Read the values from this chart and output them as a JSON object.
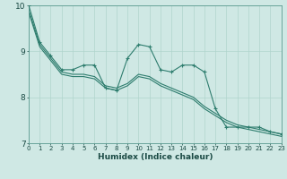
{
  "title": "",
  "xlabel": "Humidex (Indice chaleur)",
  "background_color": "#cfe8e4",
  "line_color": "#2e7d6e",
  "grid_color": "#b0d4cc",
  "x_min": 0,
  "x_max": 23,
  "y_min": 7,
  "y_max": 10,
  "series1_x": [
    0,
    1,
    2,
    3,
    4,
    5,
    6,
    7,
    8,
    9,
    10,
    11,
    12,
    13,
    14,
    15,
    16,
    17,
    18,
    19,
    20,
    21,
    22,
    23
  ],
  "series1_y": [
    10.0,
    9.2,
    8.9,
    8.6,
    8.6,
    8.7,
    8.7,
    8.2,
    8.15,
    8.85,
    9.15,
    9.1,
    8.6,
    8.55,
    8.7,
    8.7,
    8.55,
    7.75,
    7.35,
    7.35,
    7.35,
    7.35,
    7.25,
    7.2
  ],
  "series2_x": [
    0,
    1,
    2,
    3,
    4,
    5,
    6,
    7,
    8,
    9,
    10,
    11,
    12,
    13,
    14,
    15,
    16,
    17,
    18,
    19,
    20,
    21,
    22,
    23
  ],
  "series2_y": [
    9.9,
    9.15,
    8.85,
    8.55,
    8.5,
    8.5,
    8.45,
    8.25,
    8.2,
    8.3,
    8.5,
    8.45,
    8.3,
    8.2,
    8.1,
    8.0,
    7.8,
    7.65,
    7.5,
    7.4,
    7.35,
    7.3,
    7.25,
    7.2
  ],
  "series3_x": [
    0,
    1,
    2,
    3,
    4,
    5,
    6,
    7,
    8,
    9,
    10,
    11,
    12,
    13,
    14,
    15,
    16,
    17,
    18,
    19,
    20,
    21,
    22,
    23
  ],
  "series3_y": [
    9.85,
    9.1,
    8.8,
    8.5,
    8.45,
    8.45,
    8.4,
    8.2,
    8.15,
    8.25,
    8.45,
    8.4,
    8.25,
    8.15,
    8.05,
    7.95,
    7.75,
    7.6,
    7.45,
    7.35,
    7.3,
    7.25,
    7.2,
    7.15
  ],
  "yticks": [
    7,
    8,
    9,
    10
  ],
  "xtick_fontsize": 5.0,
  "ytick_fontsize": 6.5,
  "xlabel_fontsize": 6.5
}
